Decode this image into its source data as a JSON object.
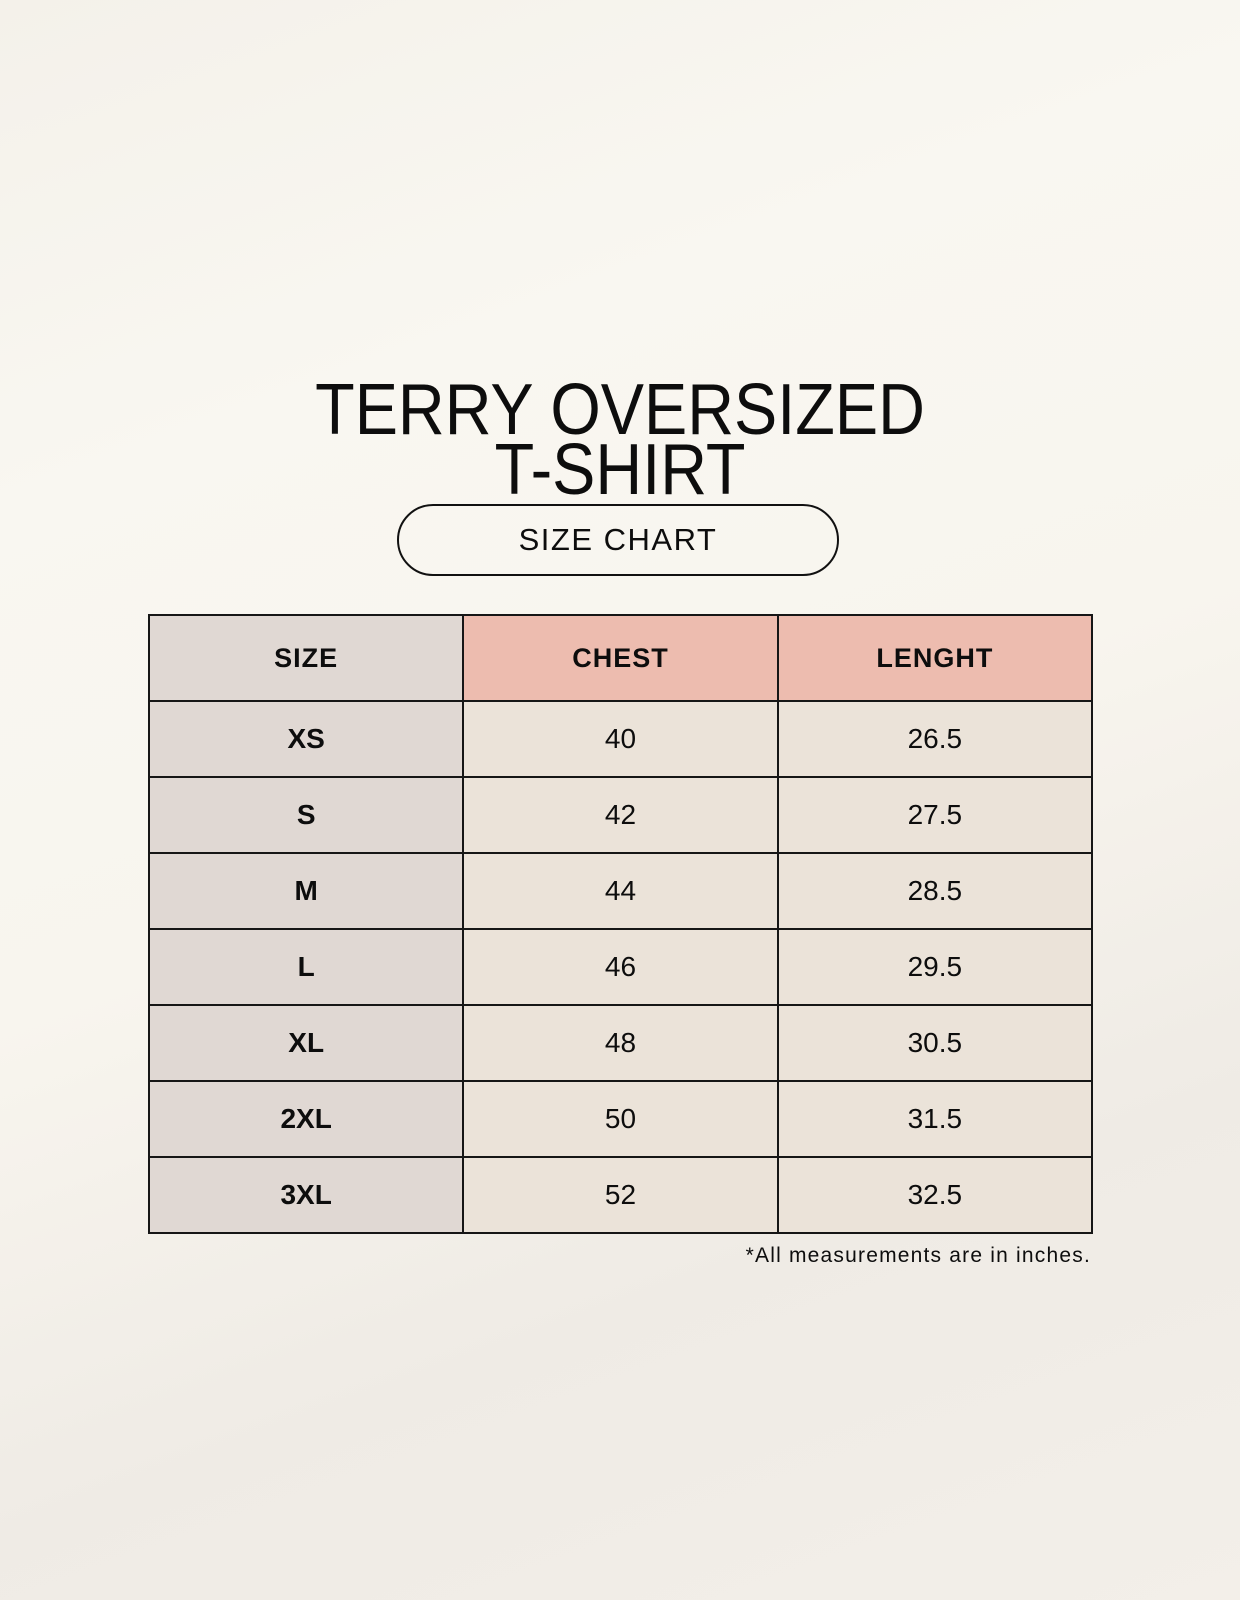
{
  "title": {
    "line1": "TERRY OVERSIZED",
    "line2": "T-SHIRT"
  },
  "badge": "SIZE CHART",
  "table": {
    "headers": [
      "SIZE",
      "CHEST",
      "LENGHT"
    ],
    "rows": [
      [
        "XS",
        "40",
        "26.5"
      ],
      [
        "S",
        "42",
        "27.5"
      ],
      [
        "M",
        "44",
        "28.5"
      ],
      [
        "L",
        "46",
        "29.5"
      ],
      [
        "XL",
        "48",
        "30.5"
      ],
      [
        "2XL",
        "50",
        "31.5"
      ],
      [
        "3XL",
        "52",
        "32.5"
      ]
    ]
  },
  "footnote": "*All measurements are in inches.",
  "colors": {
    "background": "#f8f5ef",
    "size_column": "#e0d8d3",
    "header_accent": "#edbcaf",
    "cells": "#ebe3d9",
    "border": "#161616"
  }
}
